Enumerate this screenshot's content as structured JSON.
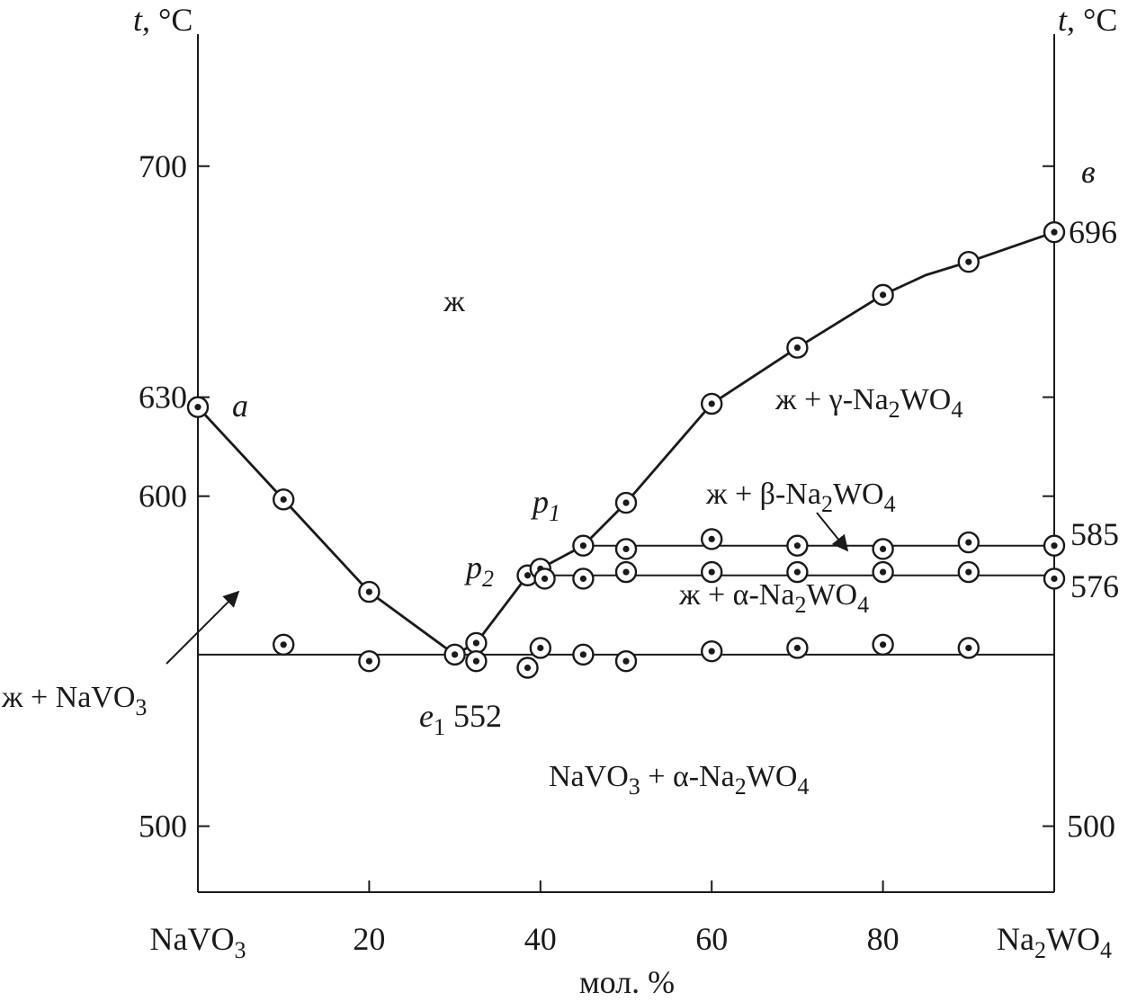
{
  "chart_data": {
    "type": "line",
    "xlabel": "мол. %",
    "ylabel_left": "t, °C",
    "ylabel_right": "t, °C",
    "xlim": [
      0,
      100
    ],
    "ylim": [
      480,
      740
    ],
    "x_ticks": [
      {
        "value": 0,
        "label": "NaVO",
        "sub": "3",
        "tail": ""
      },
      {
        "value": 20,
        "label": "20",
        "sub": "",
        "tail": ""
      },
      {
        "value": 40,
        "label": "40",
        "sub": "",
        "tail": ""
      },
      {
        "value": 60,
        "label": "60",
        "sub": "",
        "tail": ""
      },
      {
        "value": 80,
        "label": "80",
        "sub": "",
        "tail": ""
      },
      {
        "value": 100,
        "label": "Na",
        "sub": "2",
        "tail": "WO",
        "sub2": "4"
      }
    ],
    "y_ticks_left": [
      {
        "value": 500,
        "label": "500"
      },
      {
        "value": 600,
        "label": "600"
      },
      {
        "value": 630,
        "label": "630"
      },
      {
        "value": 700,
        "label": "700"
      }
    ],
    "y_ticks_right": [
      {
        "value": 500,
        "label": "500"
      }
    ],
    "curves": {
      "liquidus_navo3": {
        "x": [
          0,
          10,
          20,
          30
        ],
        "y": [
          627,
          599,
          571,
          552
        ]
      },
      "liquidus_na2wo4": {
        "x": [
          30,
          32.5,
          38.5,
          45,
          50,
          60,
          70,
          80,
          85,
          90,
          100
        ],
        "y": [
          552,
          555.5,
          576,
          585,
          598,
          628,
          645,
          661,
          667,
          671,
          680
        ]
      },
      "eutectic_line": {
        "x": [
          0,
          100
        ],
        "y": [
          552,
          552
        ]
      },
      "peritectic_line_1": {
        "x": [
          45,
          100
        ],
        "y": [
          585,
          585
        ]
      },
      "peritectic_line_2": {
        "x": [
          38.5,
          100
        ],
        "y": [
          576,
          576
        ]
      }
    },
    "points": [
      {
        "x": 0,
        "y": 627
      },
      {
        "x": 10,
        "y": 599
      },
      {
        "x": 20,
        "y": 571
      },
      {
        "x": 30,
        "y": 552
      },
      {
        "x": 32.5,
        "y": 555.5
      },
      {
        "x": 38.5,
        "y": 576
      },
      {
        "x": 40,
        "y": 578
      },
      {
        "x": 45,
        "y": 585
      },
      {
        "x": 50,
        "y": 598
      },
      {
        "x": 60,
        "y": 628
      },
      {
        "x": 70,
        "y": 645
      },
      {
        "x": 80,
        "y": 661
      },
      {
        "x": 90,
        "y": 671
      },
      {
        "x": 100,
        "y": 680
      },
      {
        "x": 50,
        "y": 584
      },
      {
        "x": 60,
        "y": 587
      },
      {
        "x": 70,
        "y": 585
      },
      {
        "x": 80,
        "y": 584
      },
      {
        "x": 90,
        "y": 586
      },
      {
        "x": 100,
        "y": 585
      },
      {
        "x": 40.5,
        "y": 575
      },
      {
        "x": 45,
        "y": 575
      },
      {
        "x": 50,
        "y": 577
      },
      {
        "x": 60,
        "y": 577
      },
      {
        "x": 70,
        "y": 577
      },
      {
        "x": 80,
        "y": 577
      },
      {
        "x": 90,
        "y": 577
      },
      {
        "x": 100,
        "y": 575
      },
      {
        "x": 10,
        "y": 555
      },
      {
        "x": 20,
        "y": 550
      },
      {
        "x": 32.5,
        "y": 550
      },
      {
        "x": 38.5,
        "y": 548
      },
      {
        "x": 40,
        "y": 554
      },
      {
        "x": 45,
        "y": 552
      },
      {
        "x": 50,
        "y": 550
      },
      {
        "x": 60,
        "y": 553
      },
      {
        "x": 70,
        "y": 554
      },
      {
        "x": 80,
        "y": 555
      },
      {
        "x": 90,
        "y": 554
      }
    ],
    "annotations": {
      "point_a": "a",
      "point_b": "в",
      "value_696": "696",
      "point_p1": "p",
      "point_p1_sub": "1",
      "point_p2": "p",
      "point_p2_sub": "2",
      "eutectic_e": "e",
      "eutectic_e_sub": "1",
      "eutectic_temp": "552",
      "value_585": "585",
      "value_576": "576"
    },
    "regions": {
      "liquid": "ж",
      "liquid_gamma": {
        "pre": "ж + γ-Na",
        "s1": "2",
        "mid": "WO",
        "s2": "4"
      },
      "liquid_beta": {
        "pre": "ж + β-Na",
        "s1": "2",
        "mid": "WO",
        "s2": "4"
      },
      "liquid_alpha": {
        "pre": "ж + α-Na",
        "s1": "2",
        "mid": "WO",
        "s2": "4"
      },
      "liquid_navo3": {
        "pre": "ж + NaVO",
        "s1": "3"
      },
      "solid": {
        "pre": "NaVO",
        "s1": "3",
        "mid": " + α-Na",
        "s2": "2",
        "mid2": "WO",
        "s3": "4"
      }
    }
  }
}
